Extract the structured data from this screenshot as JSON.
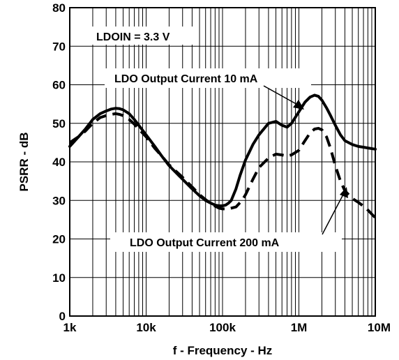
{
  "chart_data": {
    "type": "line",
    "title": "",
    "xlabel": "f - Frequency - Hz",
    "ylabel": "PSRR - dB",
    "x_scale": "log",
    "xlim": [
      1000,
      10000000
    ],
    "ylim": [
      0,
      80
    ],
    "grid": true,
    "x_ticks": [
      {
        "value": 1000,
        "label": "1k"
      },
      {
        "value": 10000,
        "label": "10k"
      },
      {
        "value": 100000,
        "label": "100k"
      },
      {
        "value": 1000000,
        "label": "1M"
      },
      {
        "value": 10000000,
        "label": "10M"
      }
    ],
    "y_ticks": [
      {
        "value": 0,
        "label": "0"
      },
      {
        "value": 10,
        "label": "10"
      },
      {
        "value": 20,
        "label": "20"
      },
      {
        "value": 30,
        "label": "30"
      },
      {
        "value": 40,
        "label": "40"
      },
      {
        "value": 50,
        "label": "50"
      },
      {
        "value": 60,
        "label": "60"
      },
      {
        "value": 70,
        "label": "70"
      },
      {
        "value": 80,
        "label": "80"
      }
    ],
    "series": [
      {
        "name": "LDO Output Current 10 mA",
        "style": "solid",
        "x": [
          1000,
          1300,
          1600,
          2000,
          2500,
          3000,
          3500,
          4000,
          4500,
          5000,
          6000,
          7000,
          8000,
          10000,
          13000,
          16000,
          20000,
          30000,
          40000,
          50000,
          60000,
          70000,
          80000,
          90000,
          100000,
          110000,
          120000,
          130000,
          150000,
          170000,
          200000,
          250000,
          300000,
          400000,
          500000,
          600000,
          700000,
          800000,
          1000000,
          1200000,
          1400000,
          1600000,
          1800000,
          2000000,
          2300000,
          2600000,
          3000000,
          3500000,
          4000000,
          5000000,
          6000000,
          7000000,
          8000000,
          10000000
        ],
        "y": [
          44,
          46.5,
          48.5,
          51,
          52.5,
          53.2,
          53.7,
          53.9,
          53.8,
          53.5,
          52.5,
          51,
          49.5,
          47,
          44,
          41.5,
          39,
          35.5,
          33,
          31.2,
          30,
          29.3,
          28.8,
          28.6,
          28.6,
          28.8,
          29.3,
          30,
          33,
          36.5,
          40.5,
          44.5,
          47,
          50,
          50.5,
          49.5,
          49,
          50,
          53,
          55.5,
          56.8,
          57.3,
          57,
          56,
          54,
          52,
          49.5,
          47,
          45.5,
          44.5,
          44,
          43.8,
          43.6,
          43.3
        ]
      },
      {
        "name": "LDO Output Current 200 mA",
        "style": "dashed",
        "x": [
          1000,
          1300,
          1600,
          2000,
          2500,
          3000,
          3500,
          4000,
          4500,
          5000,
          6000,
          7000,
          8000,
          10000,
          13000,
          16000,
          20000,
          30000,
          40000,
          50000,
          60000,
          70000,
          80000,
          90000,
          100000,
          120000,
          150000,
          180000,
          200000,
          250000,
          300000,
          400000,
          500000,
          600000,
          700000,
          800000,
          1000000,
          1200000,
          1400000,
          1600000,
          1800000,
          2000000,
          2300000,
          2600000,
          3000000,
          3500000,
          4000000,
          5000000,
          6000000,
          7000000,
          8000000,
          10000000
        ],
        "y": [
          45,
          46.5,
          48,
          50,
          51.5,
          52,
          52.3,
          52.5,
          52.3,
          52,
          51,
          49.8,
          48.5,
          46.5,
          43.5,
          41.5,
          39.2,
          36,
          33.5,
          31.5,
          30.2,
          29.2,
          28.5,
          28,
          27.8,
          27.8,
          28.3,
          30,
          31.5,
          35.5,
          38.5,
          41,
          42,
          41.8,
          41.5,
          41.8,
          43,
          45.5,
          47.5,
          48.5,
          48.7,
          48.3,
          46.5,
          43.5,
          39,
          35,
          32.5,
          30.5,
          29.5,
          28.5,
          27.5,
          25.5
        ]
      }
    ],
    "annotations": [
      {
        "text": "LDOIN = 3.3 V"
      },
      {
        "text": "LDO Output Current 10 mA"
      },
      {
        "text": "LDO Output Current 200 mA"
      }
    ]
  }
}
